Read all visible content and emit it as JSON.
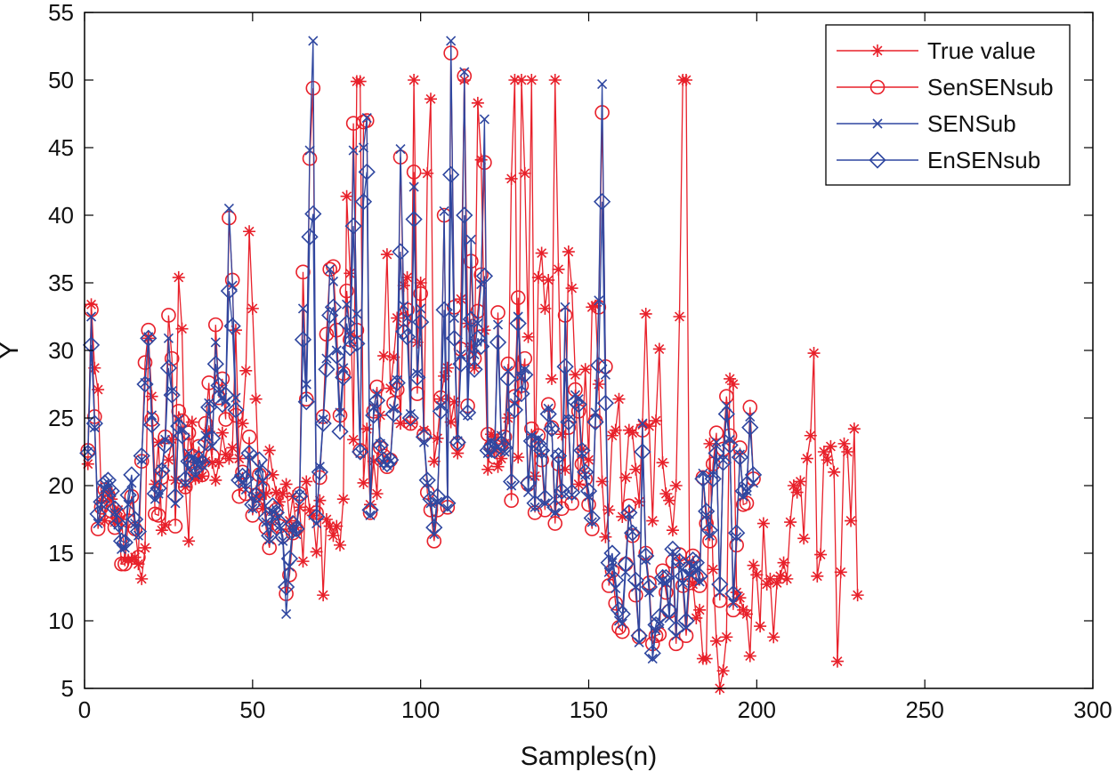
{
  "chart_data": {
    "type": "line",
    "title": "",
    "xlabel": "Samples(n)",
    "ylabel": "Y",
    "xlim": [
      0,
      300
    ],
    "ylim": [
      5,
      55
    ],
    "xticks": [
      0,
      50,
      100,
      150,
      200,
      250,
      300
    ],
    "yticks": [
      5,
      10,
      15,
      20,
      25,
      30,
      35,
      40,
      45,
      50,
      55
    ],
    "xtick_labels": [
      "0",
      "50",
      "100",
      "150",
      "200",
      "250",
      "300"
    ],
    "ytick_labels": [
      "5",
      "10",
      "15",
      "20",
      "25",
      "30",
      "35",
      "40",
      "45",
      "50",
      "55"
    ],
    "grid": false,
    "legend_position": "top-right",
    "x_start": 1,
    "series": [
      {
        "name": "True value",
        "color": "#e8202a",
        "marker": "star",
        "values": [
          21.6,
          33.4,
          28.7,
          27.1,
          18.9,
          17.4,
          19.5,
          19.0,
          17.3,
          18.2,
          17.5,
          14.5,
          14.5,
          14.5,
          14.7,
          14.2,
          13.1,
          15.4,
          30.9,
          26.6,
          20.1,
          23.2,
          16.7,
          17.1,
          21.9,
          23.4,
          20.4,
          35.4,
          31.6,
          19.9,
          15.9,
          24.7,
          20.5,
          20.6,
          20.7,
          21.8,
          24.0,
          21.7,
          20.4,
          21.7,
          23.9,
          22.3,
          22.0,
          22.8,
          31.5,
          22.0,
          24.6,
          28.5,
          38.8,
          33.1,
          26.4,
          19.2,
          18.3,
          19.4,
          22.6,
          20.8,
          19.5,
          18.8,
          19.4,
          20.1,
          17.4,
          19.2,
          16.9,
          18.4,
          14.4,
          20.3,
          18.2,
          17.8,
          15.1,
          18.9,
          11.9,
          17.5,
          17.0,
          16.3,
          17.0,
          15.6,
          19.0,
          41.4,
          35.7,
          23.4,
          49.9,
          49.9,
          20.2,
          24.2,
          18.6,
          21.8,
          19.4,
          25.2,
          29.6,
          37.1,
          27.2,
          29.5,
          32.4,
          24.6,
          34.8,
          35.4,
          24.6,
          50.0,
          30.6,
          35.0,
          24.1,
          43.1,
          48.6,
          21.8,
          23.5,
          26.4,
          28.1,
          28.7,
          24.7,
          26.2,
          22.4,
          33.8,
          50.0,
          32.0,
          30.3,
          28.7,
          48.3,
          44.1,
          31.5,
          21.2,
          23.8,
          23.6,
          21.4,
          22.0,
          23.1,
          25.0,
          42.7,
          50.0,
          22.1,
          50.0,
          43.1,
          31.0,
          50.0,
          20.7,
          35.4,
          37.2,
          33.1,
          35.2,
          27.9,
          50.0,
          36.0,
          23.8,
          21.2,
          37.3,
          34.6,
          28.2,
          20.1,
          22.7,
          28.6,
          21.9,
          33.2,
          33.3,
          27.5,
          20.3,
          16.2,
          18.2,
          23.7,
          24.1,
          26.4,
          17.7,
          20.6,
          24.1,
          23.9,
          21.2,
          18.8,
          24.5,
          32.7,
          24.4,
          17.4,
          24.8,
          30.1,
          21.7,
          19.4,
          18.9,
          16.7,
          20.0,
          32.5,
          50.0,
          50.0,
          14.3,
          12.7,
          10.2,
          10.8,
          7.2,
          7.2,
          23.1,
          13.8,
          8.5,
          5.0,
          6.3,
          8.8,
          27.9,
          27.5,
          12.1,
          11.7,
          10.8,
          10.5,
          7.4,
          14.1,
          13.4,
          9.6,
          17.2,
          12.7,
          13.1,
          8.8,
          12.8,
          13.3,
          14.3,
          13.1,
          17.3,
          20.0,
          19.5,
          20.3,
          16.1,
          22.0,
          23.7,
          29.8,
          13.3,
          14.9,
          22.5,
          21.9,
          22.9,
          21.0,
          7.0,
          13.6,
          23.1,
          22.5,
          17.4,
          24.2,
          11.9
        ]
      },
      {
        "name": "SenSENsub",
        "color": "#e8202a",
        "marker": "circle",
        "values": [
          22.6,
          33.0,
          25.1,
          16.8,
          18.4,
          19.7,
          19.3,
          18.1,
          16.9,
          17.8,
          14.2,
          14.2,
          17.4,
          19.2,
          16.8,
          14.7,
          21.8,
          29.1,
          31.5,
          24.9,
          17.9,
          17.8,
          20.6,
          23.6,
          32.6,
          29.4,
          17.0,
          25.5,
          24.8,
          19.9,
          23.9,
          22.2,
          20.9,
          22.9,
          20.8,
          24.6,
          27.6,
          22.2,
          31.9,
          26.5,
          27.9,
          24.9,
          39.8,
          35.2,
          25.2,
          19.2,
          21.0,
          19.4,
          23.6,
          17.8,
          19.3,
          20.8,
          19.8,
          16.9,
          15.4,
          17.6,
          18.2,
          17.0,
          16.3,
          12.0,
          13.4,
          16.5,
          16.8,
          19.4,
          35.8,
          26.4,
          44.2,
          49.4,
          18.0,
          20.6,
          25.1,
          31.2,
          36.0,
          36.2,
          31.5,
          25.2,
          28.3,
          34.4,
          30.8,
          46.8,
          31.5,
          22.6,
          46.9,
          47.0,
          18.0,
          25.5,
          27.3,
          22.8,
          22.2,
          21.4,
          21.9,
          26.1,
          27.1,
          44.3,
          32.3,
          33.0,
          24.6,
          43.2,
          26.8,
          34.2,
          23.8,
          19.5,
          18.2,
          15.9,
          18.2,
          26.5,
          40.0,
          18.4,
          52.0,
          33.2,
          23.1,
          30.1,
          50.3,
          25.9,
          36.6,
          29.4,
          32.9,
          35.6,
          43.9,
          23.8,
          22.9,
          22.1,
          32.8,
          23.1,
          23.6,
          29.0,
          18.9,
          26.6,
          33.9,
          27.4,
          29.4,
          20.1,
          24.2,
          18.0,
          23.7,
          21.9,
          18.2,
          26.0,
          24.3,
          17.2,
          21.6,
          18.3,
          32.6,
          24.3,
          18.7,
          27.1,
          25.5,
          21.6,
          20.5,
          18.6,
          16.8,
          24.8,
          33.2,
          47.6,
          28.8,
          12.6,
          13.7,
          11.3,
          9.5,
          9.2,
          14.2,
          18.5,
          16.3,
          11.9,
          8.8,
          24.1,
          15.0,
          12.8,
          8.3,
          8.9,
          9.0,
          13.7,
          12.1,
          10.7,
          14.4,
          8.3,
          14.9,
          12.6,
          8.9,
          12.8,
          14.8,
          13.2,
          12.6,
          20.6,
          17.2,
          15.9,
          21.6,
          23.9,
          11.5,
          22.7,
          26.6,
          23.7,
          10.8,
          15.6,
          22.8,
          18.6,
          18.7,
          25.8,
          20.5
        ]
      },
      {
        "name": "SENSub",
        "color": "#2f47a0",
        "marker": "x",
        "values": [
          22.5,
          32.5,
          24.3,
          17.2,
          18.6,
          19.8,
          20.2,
          19.5,
          18.0,
          17.1,
          15.3,
          15.4,
          18.6,
          20.2,
          17.2,
          16.3,
          21.9,
          27.6,
          31.0,
          25.2,
          19.0,
          19.4,
          21.2,
          23.4,
          30.9,
          27.0,
          18.7,
          24.9,
          24.1,
          20.2,
          22.4,
          22.0,
          20.8,
          21.9,
          21.5,
          23.7,
          26.1,
          22.9,
          30.6,
          27.1,
          26.5,
          26.2,
          40.5,
          34.8,
          26.5,
          20.5,
          20.3,
          19.7,
          22.3,
          18.3,
          19.2,
          21.3,
          20.3,
          17.3,
          16.0,
          18.1,
          17.9,
          17.0,
          15.9,
          10.5,
          14.0,
          16.9,
          16.4,
          19.3,
          33.1,
          27.5,
          44.8,
          52.9,
          17.2,
          21.4,
          24.9,
          29.4,
          36.0,
          35.1,
          30.0,
          25.4,
          28.7,
          33.4,
          31.2,
          44.8,
          32.7,
          22.4,
          45.0,
          47.2,
          17.8,
          25.8,
          26.8,
          23.1,
          21.7,
          21.5,
          21.8,
          25.7,
          27.8,
          44.9,
          33.3,
          32.4,
          25.3,
          42.1,
          28.3,
          33.1,
          23.2,
          20.2,
          18.7,
          16.4,
          18.8,
          25.9,
          40.3,
          18.3,
          52.9,
          32.4,
          23.3,
          29.7,
          50.6,
          25.2,
          38.2,
          29.7,
          32.0,
          34.9,
          47.1,
          22.4,
          23.3,
          22.7,
          31.9,
          23.7,
          22.5,
          28.5,
          20.0,
          26.1,
          32.5,
          28.1,
          28.6,
          19.5,
          23.7,
          18.4,
          23.5,
          22.4,
          18.7,
          25.7,
          24.2,
          18.0,
          22.3,
          19.4,
          33.2,
          24.9,
          19.3,
          26.7,
          26.4,
          22.4,
          20.8,
          19.2,
          17.3,
          25.4,
          33.7,
          49.7,
          28.2,
          13.6,
          14.3,
          12.4,
          10.0,
          9.8,
          13.6,
          17.9,
          16.6,
          12.5,
          8.4,
          24.6,
          14.5,
          12.1,
          7.2,
          9.3,
          9.8,
          13.0,
          12.8,
          10.2,
          15.1,
          8.9,
          14.4,
          12.8,
          9.5,
          13.5,
          14.1,
          13.8,
          12.9,
          20.9,
          17.8,
          16.3,
          20.8,
          23.2,
          12.1,
          21.9,
          25.9,
          23.4,
          11.3,
          16.2,
          22.3,
          19.2,
          19.6,
          25.1,
          20.2
        ]
      },
      {
        "name": "EnSENsub",
        "color": "#2f47a0",
        "marker": "diamond",
        "values": [
          22.4,
          30.4,
          24.6,
          17.9,
          18.8,
          20.2,
          20.4,
          19.6,
          18.3,
          17.2,
          15.9,
          15.8,
          19.3,
          20.8,
          17.5,
          16.6,
          22.2,
          27.5,
          30.9,
          24.5,
          19.4,
          19.8,
          21.1,
          23.0,
          28.7,
          26.7,
          19.2,
          24.4,
          23.7,
          20.5,
          21.8,
          21.7,
          21.2,
          22.0,
          21.7,
          23.2,
          25.8,
          23.5,
          29.0,
          27.4,
          26.0,
          26.7,
          34.4,
          31.8,
          25.6,
          20.4,
          20.7,
          20.5,
          22.4,
          18.6,
          19.3,
          21.9,
          20.9,
          17.6,
          16.3,
          18.5,
          18.0,
          17.3,
          16.2,
          12.5,
          14.6,
          17.2,
          16.8,
          19.2,
          30.8,
          26.2,
          38.4,
          40.1,
          17.7,
          21.0,
          24.6,
          28.6,
          32.6,
          33.2,
          29.6,
          24.0,
          28.0,
          32.0,
          30.2,
          39.2,
          30.5,
          22.5,
          41.0,
          43.2,
          18.2,
          25.2,
          26.3,
          23.0,
          21.9,
          21.6,
          21.9,
          25.3,
          27.6,
          37.3,
          31.4,
          31.0,
          25.0,
          39.7,
          28.0,
          32.1,
          23.6,
          20.4,
          19.0,
          16.9,
          19.2,
          25.5,
          33.0,
          18.7,
          43.0,
          30.9,
          23.2,
          29.0,
          40.0,
          25.4,
          32.3,
          28.6,
          30.9,
          30.3,
          35.5,
          22.6,
          22.9,
          22.6,
          30.6,
          23.1,
          22.8,
          27.9,
          20.3,
          25.6,
          32.0,
          26.8,
          28.2,
          20.2,
          23.3,
          18.7,
          23.1,
          22.6,
          19.1,
          25.3,
          24.2,
          18.4,
          22.2,
          19.6,
          28.8,
          24.7,
          19.5,
          26.2,
          26.0,
          22.6,
          21.0,
          19.6,
          17.6,
          24.7,
          28.9,
          41.0,
          26.1,
          14.3,
          15.0,
          13.0,
          10.8,
          10.5,
          14.2,
          18.0,
          16.5,
          13.0,
          8.9,
          22.5,
          14.8,
          12.5,
          7.6,
          9.7,
          10.3,
          13.2,
          13.2,
          10.8,
          15.3,
          9.4,
          14.4,
          13.3,
          10.0,
          13.8,
          14.5,
          14.3,
          13.3,
          20.5,
          18.1,
          16.7,
          20.5,
          22.4,
          12.7,
          21.7,
          25.3,
          23.0,
          12.0,
          16.5,
          22.1,
          19.6,
          20.1,
          24.3,
          20.8
        ]
      }
    ]
  }
}
